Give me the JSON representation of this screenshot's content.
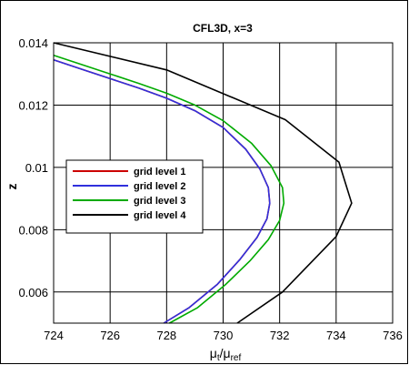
{
  "chart_data": {
    "type": "line",
    "title": "CFL3D, x=3",
    "xlabel": {
      "main": "μ",
      "sub1": "t",
      "mid": "/μ",
      "sub2": "ref"
    },
    "ylabel": "z",
    "xlim": [
      724,
      736
    ],
    "ylim": [
      0.005,
      0.014
    ],
    "xticks": [
      "724",
      "726",
      "728",
      "730",
      "732",
      "734",
      "736"
    ],
    "xtick_values": [
      724,
      726,
      728,
      730,
      732,
      734,
      736
    ],
    "yticks": [
      "0.006",
      "0.008",
      "0.01",
      "0.012",
      "0.014"
    ],
    "ytick_values": [
      0.006,
      0.008,
      0.01,
      0.012,
      0.014
    ],
    "grid": true,
    "legend_position": "left-middle",
    "series": [
      {
        "name": "grid level 1",
        "color": "#cc0000",
        "points": [
          [
            724.0,
            0.01345
          ],
          [
            725.0,
            0.01315
          ],
          [
            726.0,
            0.01285
          ],
          [
            727.0,
            0.01255
          ],
          [
            728.0,
            0.01222
          ],
          [
            729.0,
            0.01182
          ],
          [
            730.0,
            0.01128
          ],
          [
            730.8,
            0.01058
          ],
          [
            731.3,
            0.00995
          ],
          [
            731.6,
            0.00935
          ],
          [
            731.65,
            0.00885
          ],
          [
            731.55,
            0.00835
          ],
          [
            731.2,
            0.00775
          ],
          [
            730.6,
            0.00705
          ],
          [
            729.8,
            0.00625
          ],
          [
            728.8,
            0.0055
          ],
          [
            727.9,
            0.005
          ]
        ]
      },
      {
        "name": "grid level 2",
        "color": "#3030dd",
        "points": [
          [
            724.0,
            0.01345
          ],
          [
            725.0,
            0.01315
          ],
          [
            726.0,
            0.01285
          ],
          [
            727.0,
            0.01255
          ],
          [
            728.0,
            0.01222
          ],
          [
            729.0,
            0.01182
          ],
          [
            730.0,
            0.01128
          ],
          [
            730.8,
            0.01058
          ],
          [
            731.3,
            0.00995
          ],
          [
            731.6,
            0.00935
          ],
          [
            731.65,
            0.00885
          ],
          [
            731.55,
            0.00835
          ],
          [
            731.2,
            0.00775
          ],
          [
            730.6,
            0.00705
          ],
          [
            729.8,
            0.00625
          ],
          [
            728.8,
            0.0055
          ],
          [
            727.9,
            0.005
          ]
        ]
      },
      {
        "name": "grid level 3",
        "color": "#00aa00",
        "points": [
          [
            724.0,
            0.0136
          ],
          [
            725.0,
            0.0133
          ],
          [
            726.0,
            0.013
          ],
          [
            727.0,
            0.0127
          ],
          [
            728.0,
            0.01238
          ],
          [
            729.0,
            0.012
          ],
          [
            730.0,
            0.0115
          ],
          [
            731.0,
            0.01078
          ],
          [
            731.7,
            0.01005
          ],
          [
            732.1,
            0.00935
          ],
          [
            732.15,
            0.00885
          ],
          [
            732.0,
            0.0083
          ],
          [
            731.6,
            0.00768
          ],
          [
            730.95,
            0.007
          ],
          [
            730.1,
            0.00625
          ],
          [
            729.1,
            0.0055
          ],
          [
            728.1,
            0.005
          ]
        ]
      },
      {
        "name": "grid level 4",
        "color": "#000000",
        "points": [
          [
            724.0,
            0.014
          ],
          [
            728.0,
            0.01313
          ],
          [
            732.2,
            0.01153
          ],
          [
            734.1,
            0.01017
          ],
          [
            734.55,
            0.00885
          ],
          [
            734.0,
            0.00778
          ],
          [
            732.1,
            0.006
          ],
          [
            730.5,
            0.005
          ]
        ]
      }
    ]
  }
}
